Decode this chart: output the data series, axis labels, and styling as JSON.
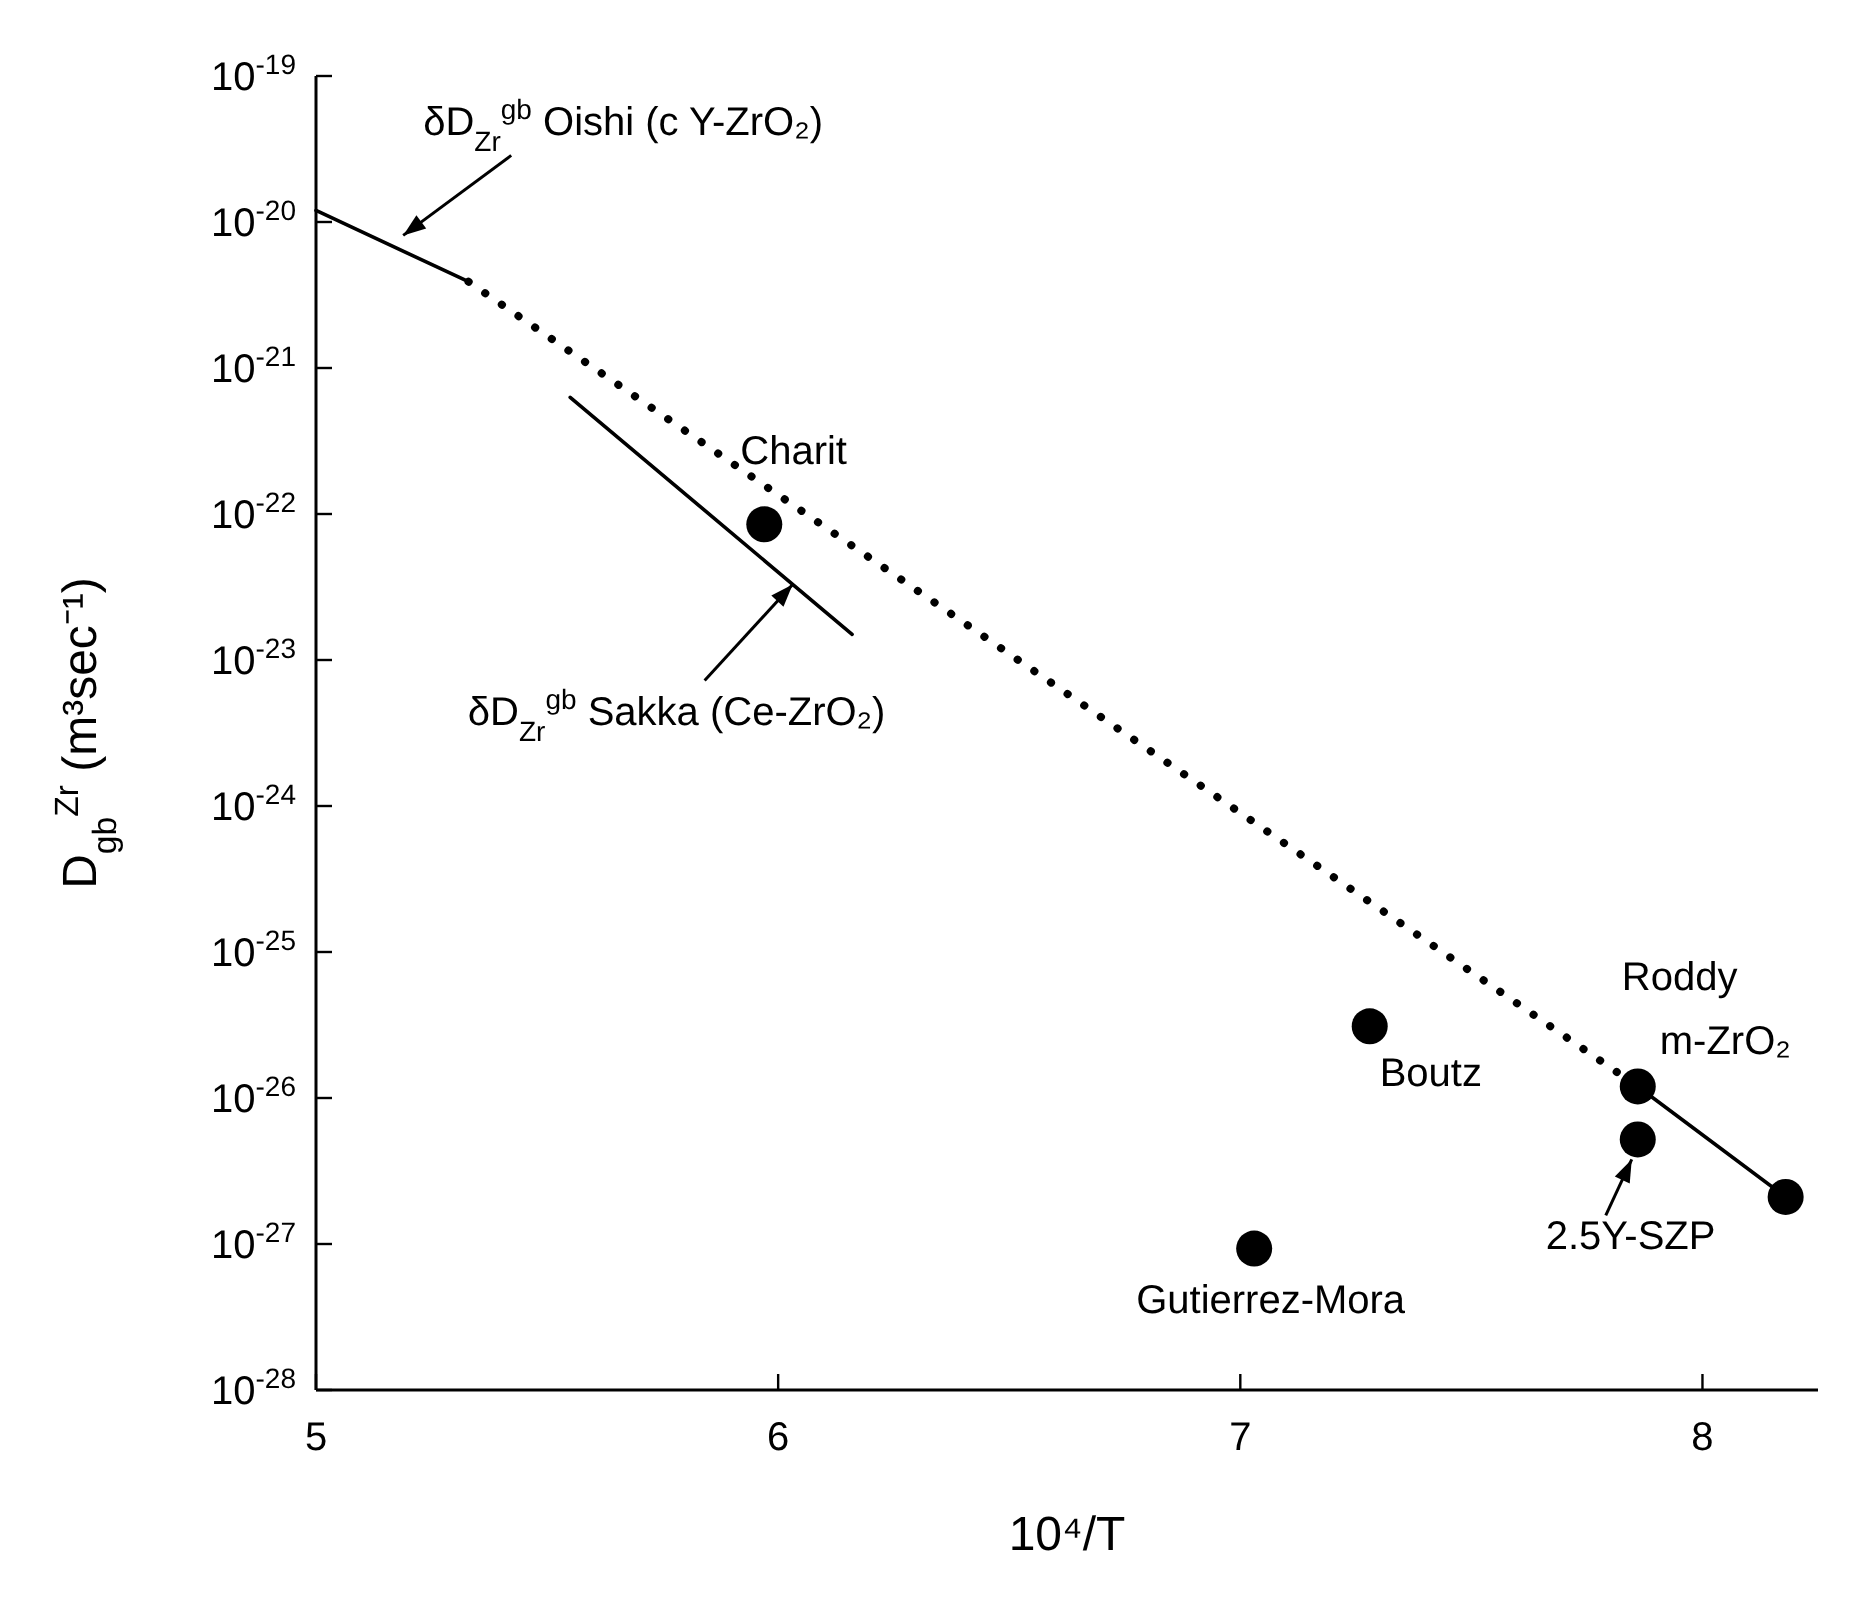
{
  "chart_data": {
    "type": "scatter",
    "xlabel": "10⁴/T",
    "ylabel": "D$_{gb}$$^{Zr}$ (m³sec⁻¹)",
    "log": "y",
    "xlim": [
      5,
      8.25
    ],
    "xticks": [
      5,
      6,
      7,
      8
    ],
    "ylim": [
      1e-28,
      1e-19
    ],
    "yticks": [
      {
        "value": 1e-19,
        "label": "10$^{-19}$"
      },
      {
        "value": 1e-20,
        "label": "10$^{-20}$"
      },
      {
        "value": 1e-21,
        "label": "10$^{-21}$"
      },
      {
        "value": 1e-22,
        "label": "10$^{-22}$"
      },
      {
        "value": 1e-23,
        "label": "10$^{-23}$"
      },
      {
        "value": 1e-24,
        "label": "10$^{-24}$"
      },
      {
        "value": 1e-25,
        "label": "10$^{-25}$"
      },
      {
        "value": 1e-26,
        "label": "10$^{-26}$"
      },
      {
        "value": 1e-27,
        "label": "10$^{-27}$"
      },
      {
        "value": 1e-28,
        "label": "10$^{-28}$"
      }
    ],
    "series": [
      {
        "type": "line",
        "x": [
          5.0,
          5.33
        ],
        "values": [
          1.2e-20,
          3.9e-21
        ],
        "color": "#000000",
        "line_style": "solid",
        "marker": "none"
      },
      {
        "type": "line",
        "x": [
          5.33,
          7.86
        ],
        "values": [
          3.9e-21,
          1.2e-26
        ],
        "color": "#000000",
        "line_style": "dotted",
        "marker": "none"
      },
      {
        "type": "line",
        "x": [
          5.55,
          6.16
        ],
        "values": [
          6.3e-22,
          1.5e-23
        ],
        "color": "#000000",
        "line_style": "solid",
        "marker": "none"
      },
      {
        "type": "line",
        "x": [
          7.86,
          8.18
        ],
        "values": [
          1.2e-26,
          2.1e-27
        ],
        "color": "#000000",
        "line_style": "solid",
        "marker": "none"
      },
      {
        "x": [
          5.97,
          7.28,
          7.86,
          7.86,
          8.18,
          7.03
        ],
        "values": [
          8.5e-23,
          3.1e-26,
          1.2e-26,
          5.2e-27,
          2.1e-27,
          9.3e-28
        ],
        "color": "#000000",
        "marker": "circle"
      }
    ],
    "annotations": [
      {
        "text": "δD$_{Zr}$$^{gb}$ Oishi (c Y-ZrO₂)",
        "x": 5.18,
        "y": 7.6e-21
      },
      {
        "text": "δD$_{Zr}$$^{gb}$ Sakka (Ce-ZrO₂)",
        "x": 6.04,
        "y": 3.5e-23
      },
      {
        "text": "Charit",
        "x": 5.97,
        "y": 8.5e-23
      },
      {
        "text": "Boutz",
        "x": 7.28,
        "y": 3.1e-26
      },
      {
        "text": "Roddy",
        "x": 7.86,
        "y": 1.2e-26
      },
      {
        "text": "m-ZrO₂",
        "x": 7.86,
        "y": 1.2e-26
      },
      {
        "text": "2.5Y-SZP",
        "x": 7.86,
        "y": 5.2e-27
      },
      {
        "text": "Gutierrez-Mora",
        "x": 7.03,
        "y": 9.3e-28
      }
    ]
  }
}
